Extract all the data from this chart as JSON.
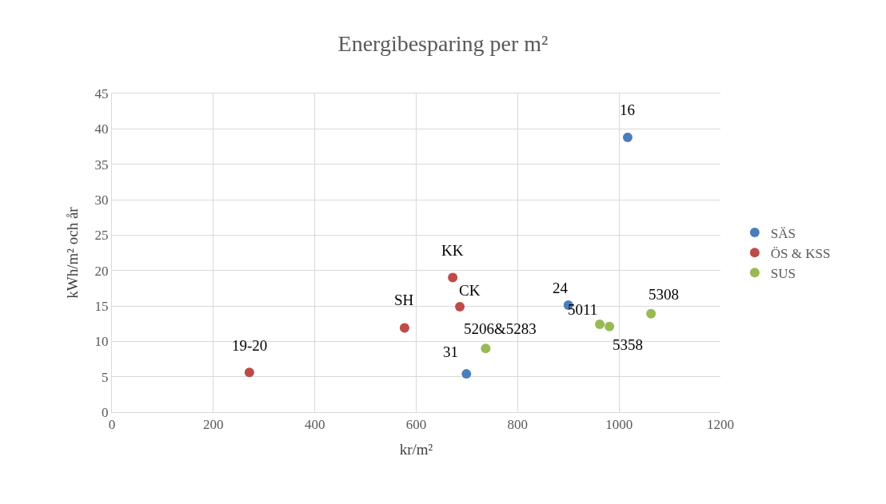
{
  "chart_data": {
    "type": "scatter",
    "title": "Energibesparing per m²",
    "xlabel": "kr/m²",
    "ylabel": "kWh/m² och år",
    "xlim": [
      0,
      1200
    ],
    "xticks": [
      0,
      200,
      400,
      600,
      800,
      1000,
      1200
    ],
    "ylim": [
      0,
      45
    ],
    "yticks": [
      0,
      5,
      10,
      15,
      20,
      25,
      30,
      35,
      40,
      45
    ],
    "grid": true,
    "legend": "right",
    "marker": "circle",
    "series": [
      {
        "name": "SÄS",
        "color": "#4a7ebb",
        "x": [
          1017,
          900,
          699
        ],
        "values": [
          38.8,
          15.1,
          5.4
        ]
      },
      {
        "name": "ÖS & KSS",
        "color": "#be4b48",
        "x": [
          271,
          577,
          672,
          686
        ],
        "values": [
          5.6,
          11.9,
          19,
          14.9
        ]
      },
      {
        "name": "SUS",
        "color": "#98b954",
        "x": [
          737,
          962,
          981,
          1063
        ],
        "values": [
          9,
          12.4,
          12.1,
          13.9
        ]
      }
    ],
    "annotations": [
      {
        "text": "16",
        "x": 1017,
        "y": 38.8
      },
      {
        "text": "24",
        "x": 900,
        "y": 15.1
      },
      {
        "text": "31",
        "x": 699,
        "y": 5.4
      },
      {
        "text": "19-20",
        "x": 271,
        "y": 5.6
      },
      {
        "text": "SH",
        "x": 577,
        "y": 11.9
      },
      {
        "text": "KK",
        "x": 672,
        "y": 19
      },
      {
        "text": "CK",
        "x": 686,
        "y": 14.9
      },
      {
        "text": "5206&5283",
        "x": 737,
        "y": 9
      },
      {
        "text": "5011",
        "x": 962,
        "y": 12.4
      },
      {
        "text": "5358",
        "x": 981,
        "y": 12.1
      },
      {
        "text": "5308",
        "x": 1063,
        "y": 13.9
      }
    ]
  }
}
